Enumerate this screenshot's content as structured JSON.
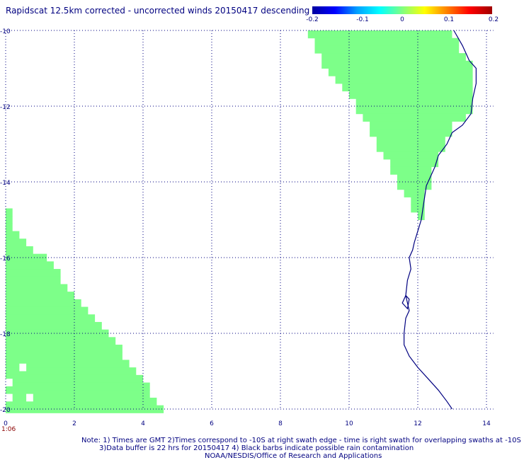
{
  "chart_data": {
    "type": "heatmap",
    "title": "Rapidscat 12.5km corrected - uncorrected winds 20150417 descending",
    "xlabel": "",
    "ylabel": "",
    "xlim": [
      0,
      14.2
    ],
    "ylim": [
      -20,
      -10
    ],
    "x_ticks": [
      "0",
      "2",
      "4",
      "6",
      "8",
      "10",
      "12",
      "14"
    ],
    "y_ticks": [
      "-10",
      "-12",
      "-14",
      "-16",
      "-18",
      "-20"
    ],
    "grid": true,
    "grid_style": "dotted",
    "colorbar": {
      "range": [
        -0.2,
        0.2
      ],
      "ticks": [
        "-0.2",
        "-0.1",
        "0",
        "0.1",
        "0.2"
      ],
      "colors": [
        "#0000a0",
        "#0000ff",
        "#00a0ff",
        "#00ffff",
        "#80ff80",
        "#ffff00",
        "#ff8000",
        "#ff0000",
        "#a00000"
      ]
    },
    "fill_color": "#7dff89",
    "fill_value": 0,
    "swath_east_edges": [
      {
        "lat": -10.0,
        "lon_max": 13.0
      },
      {
        "lat": -11.0,
        "lon_max": 13.7
      },
      {
        "lat": -12.0,
        "lon_max": 13.7
      },
      {
        "lat": -12.4,
        "lon_max": 13.0
      },
      {
        "lat": -13.0,
        "lon_max": 12.7
      },
      {
        "lat": -13.6,
        "lon_max": 12.4
      },
      {
        "lat": -14.4,
        "lon_max": 12.2
      },
      {
        "lat": -14.8,
        "lon_max": 12.15
      }
    ],
    "swath_west_edges": [
      {
        "lat": -10.0,
        "lon_min": 8.8
      },
      {
        "lat": -11.0,
        "lon_min": 9.4
      },
      {
        "lat": -12.0,
        "lon_min": 10.3
      },
      {
        "lat": -13.0,
        "lon_min": 10.9
      },
      {
        "lat": -14.0,
        "lon_min": 11.5
      },
      {
        "lat": -14.8,
        "lon_min": 12.0
      }
    ],
    "swath2_edges": [
      {
        "lat": -14.7,
        "lon_max": 0.0
      },
      {
        "lat": -15.5,
        "lon_max": 0.6
      },
      {
        "lat": -16.0,
        "lon_max": 1.3
      },
      {
        "lat": -17.0,
        "lon_max": 2.1
      },
      {
        "lat": -18.0,
        "lon_max": 3.1
      },
      {
        "lat": -19.0,
        "lon_max": 3.9
      },
      {
        "lat": -20.0,
        "lon_max": 4.7
      }
    ],
    "coastline": [
      [
        13.05,
        -10.0
      ],
      [
        13.3,
        -10.4
      ],
      [
        13.5,
        -10.8
      ],
      [
        13.7,
        -11.0
      ],
      [
        13.7,
        -11.4
      ],
      [
        13.6,
        -11.8
      ],
      [
        13.55,
        -12.2
      ],
      [
        13.3,
        -12.5
      ],
      [
        13.0,
        -12.7
      ],
      [
        12.85,
        -13.0
      ],
      [
        12.6,
        -13.3
      ],
      [
        12.5,
        -13.6
      ],
      [
        12.35,
        -13.9
      ],
      [
        12.25,
        -14.1
      ],
      [
        12.2,
        -14.4
      ],
      [
        12.15,
        -14.7
      ],
      [
        12.1,
        -15.0
      ],
      [
        12.0,
        -15.3
      ],
      [
        11.9,
        -15.6
      ],
      [
        11.85,
        -15.8
      ],
      [
        11.75,
        -16.0
      ],
      [
        11.8,
        -16.3
      ],
      [
        11.7,
        -16.6
      ],
      [
        11.65,
        -17.0
      ],
      [
        11.75,
        -17.4
      ],
      [
        11.65,
        -17.6
      ],
      [
        11.6,
        -18.0
      ],
      [
        11.6,
        -18.3
      ],
      [
        11.75,
        -18.6
      ],
      [
        12.0,
        -18.9
      ],
      [
        12.3,
        -19.2
      ],
      [
        12.6,
        -19.5
      ],
      [
        12.85,
        -19.8
      ],
      [
        13.0,
        -20.0
      ]
    ],
    "time_label": "1:06",
    "notes": [
      "Note: 1) Times are GMT 2)Times correspond to -10S at right swath edge - time is right swath for overlapping swaths at -10S",
      "3)Data buffer is 22 hrs for 20150417 4) Black barbs indicate possible rain contamination",
      "NOAA/NESDIS/Office of Research and Applications"
    ]
  }
}
